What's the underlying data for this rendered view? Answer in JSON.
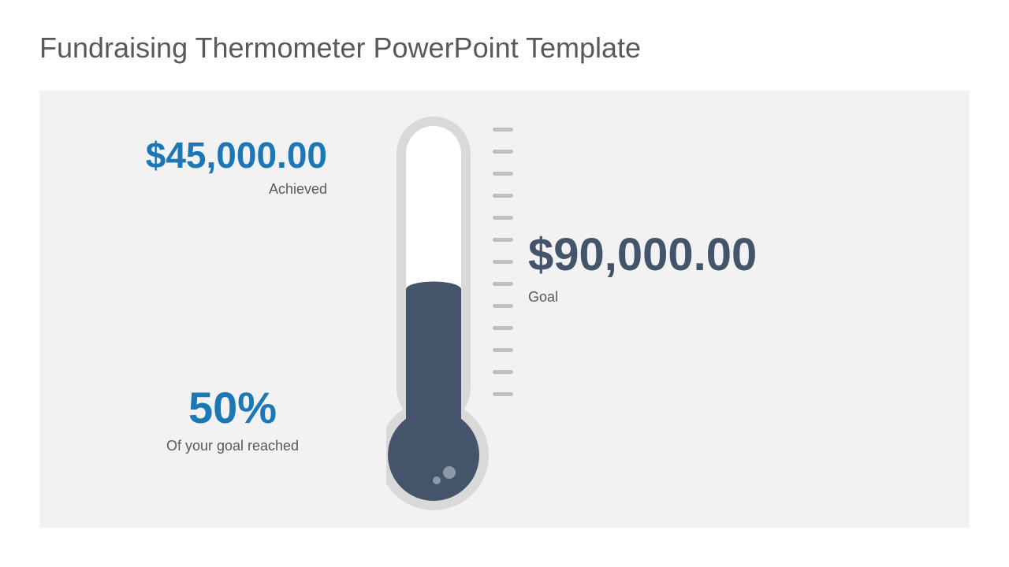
{
  "title": {
    "text": "Fundraising Thermometer PowerPoint Template",
    "color": "#595959",
    "fontsize": 36
  },
  "panel": {
    "background": "#f2f2f2"
  },
  "achieved": {
    "amount": "$45,000.00",
    "amount_color": "#1b77b5",
    "amount_fontsize": 46,
    "label": "Achieved",
    "label_color": "#595959",
    "label_fontsize": 18
  },
  "percent": {
    "value": "50%",
    "value_color": "#1b77b5",
    "value_fontsize": 56,
    "label": "Of your goal reached",
    "label_color": "#595959",
    "label_fontsize": 18
  },
  "goal": {
    "amount": "$90,000.00",
    "amount_color": "#44546a",
    "amount_fontsize": 58,
    "label": "Goal",
    "label_color": "#595959",
    "label_fontsize": 18
  },
  "thermometer": {
    "fill_percent": 50,
    "outline_color": "#d9d9d9",
    "tube_inner_bg": "#ffffff",
    "fluid_color": "#44546a",
    "bulb_highlight": "#8e99a8",
    "tick_color": "#bfbfbf",
    "tick_count": 13,
    "tube_width": 70,
    "tube_height": 380,
    "bulb_radius": 58
  }
}
